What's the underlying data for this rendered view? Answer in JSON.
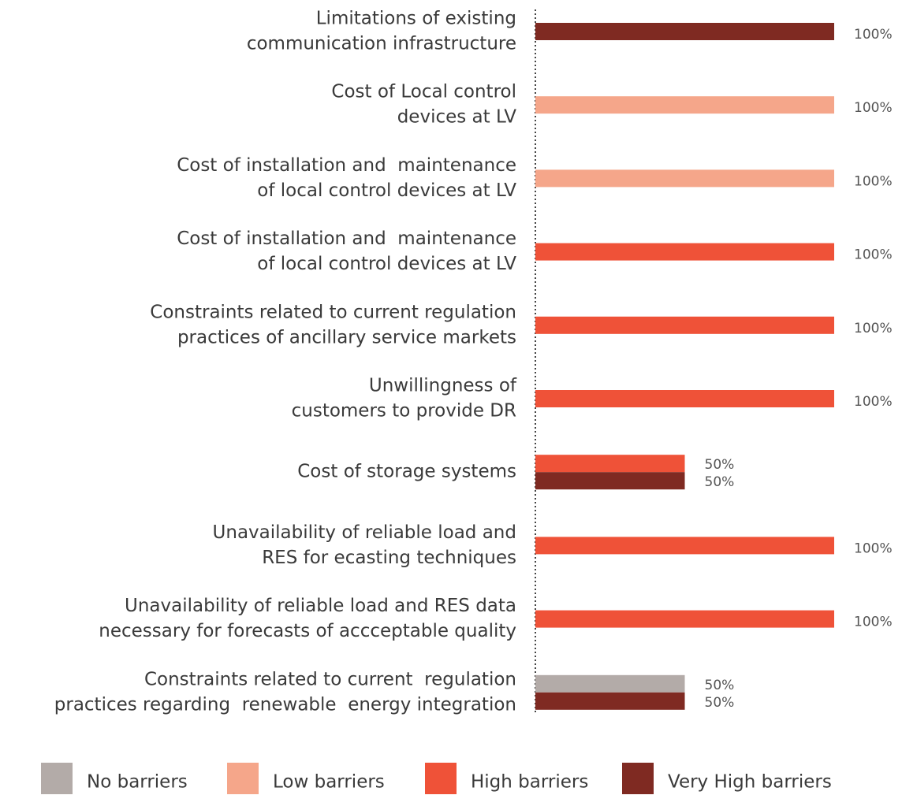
{
  "chart_data": {
    "type": "bar",
    "orientation": "horizontal",
    "categories": [
      [
        "Limitations of existing",
        "communication infrastructure"
      ],
      [
        "Cost of Local control",
        "devices at LV"
      ],
      [
        "Cost of installation and  maintenance",
        "of local control devices at LV"
      ],
      [
        "Cost of installation and  maintenance",
        "of local control devices at LV"
      ],
      [
        "Constraints related to current regulation",
        "practices of ancillary service markets"
      ],
      [
        "Unwillingness of",
        "customers to provide DR"
      ],
      [
        "Cost of storage systems"
      ],
      [
        "Unavailability of reliable load and",
        "RES for ecasting techniques"
      ],
      [
        "Unavailability of reliable load and RES data",
        "necessary for forecasts of accceptable quality"
      ],
      [
        "Constraints related to current  regulation",
        "practices regarding  renewable  energy integration"
      ]
    ],
    "series": [
      {
        "name": "No barriers",
        "color": "#b3aba8",
        "values": [
          null,
          null,
          null,
          null,
          null,
          null,
          null,
          null,
          null,
          50
        ],
        "value_labels": [
          null,
          null,
          null,
          null,
          null,
          null,
          null,
          null,
          null,
          "50%"
        ]
      },
      {
        "name": "Low barriers",
        "color": "#f5a68a",
        "values": [
          null,
          100,
          100,
          null,
          null,
          null,
          null,
          null,
          null,
          null
        ],
        "value_labels": [
          null,
          "100%",
          "100%",
          null,
          null,
          null,
          null,
          null,
          null,
          null
        ]
      },
      {
        "name": "High barriers",
        "color": "#ef5238",
        "values": [
          null,
          null,
          null,
          100,
          100,
          100,
          50,
          100,
          100,
          null
        ],
        "value_labels": [
          null,
          null,
          null,
          "100%",
          "100%",
          "100%",
          "50%",
          "100%",
          "100%",
          null
        ]
      },
      {
        "name": "Very High barriers",
        "color": "#7f2a22",
        "values": [
          100,
          null,
          null,
          null,
          null,
          null,
          50,
          null,
          null,
          50
        ],
        "value_labels": [
          "100%",
          null,
          null,
          null,
          null,
          null,
          "50%",
          null,
          null,
          "50%"
        ]
      }
    ],
    "xlim": [
      0,
      100
    ],
    "legend": "bottom"
  }
}
